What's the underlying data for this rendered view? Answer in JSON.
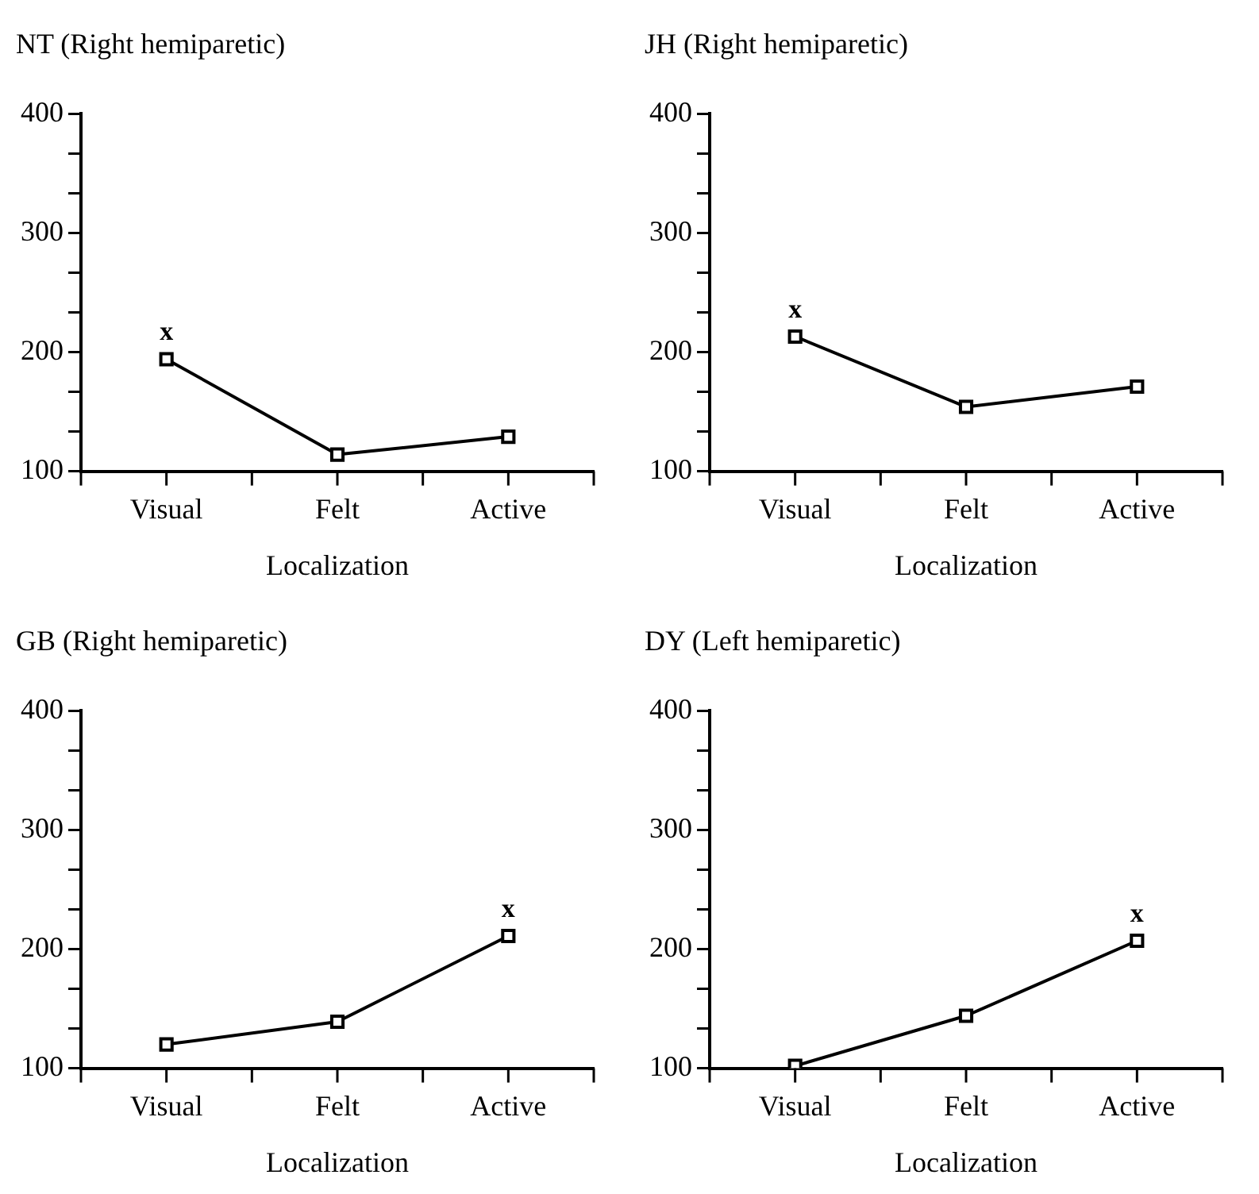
{
  "chart_data": [
    {
      "type": "line",
      "title": "NT (Right hemiparetic)",
      "xlabel": "Localization",
      "categories": [
        "Visual",
        "Felt",
        "Active"
      ],
      "series": [
        {
          "color": "#000000",
          "values": [
            194,
            114,
            129
          ]
        }
      ],
      "ylim": [
        100,
        400
      ],
      "yticks": [
        100,
        {
          "value": 133.3,
          "label": null
        },
        {
          "value": 166.7,
          "label": null
        },
        200,
        {
          "value": 233.3,
          "label": null
        },
        {
          "value": 266.7,
          "label": null
        },
        300,
        {
          "value": 333.3,
          "label": null
        },
        {
          "value": 366.7,
          "label": null
        },
        400
      ],
      "marker": "square",
      "grid": false,
      "legend": false,
      "annotations": [
        {
          "text": "x",
          "x": "Visual",
          "y": 194
        }
      ]
    },
    {
      "type": "line",
      "title": "JH (Right hemiparetic)",
      "xlabel": "Localization",
      "categories": [
        "Visual",
        "Felt",
        "Active"
      ],
      "series": [
        {
          "color": "#000000",
          "values": [
            213,
            154,
            171
          ]
        }
      ],
      "ylim": [
        100,
        400
      ],
      "yticks": [
        100,
        {
          "value": 133.3,
          "label": null
        },
        {
          "value": 166.7,
          "label": null
        },
        200,
        {
          "value": 233.3,
          "label": null
        },
        {
          "value": 266.7,
          "label": null
        },
        300,
        {
          "value": 333.3,
          "label": null
        },
        {
          "value": 366.7,
          "label": null
        },
        400
      ],
      "marker": "square",
      "grid": false,
      "legend": false,
      "annotations": [
        {
          "text": "x",
          "x": "Visual",
          "y": 213
        }
      ]
    },
    {
      "type": "line",
      "title": "GB (Right hemiparetic)",
      "xlabel": "Localization",
      "categories": [
        "Visual",
        "Felt",
        "Active"
      ],
      "series": [
        {
          "color": "#000000",
          "values": [
            120,
            139,
            211
          ]
        }
      ],
      "ylim": [
        100,
        400
      ],
      "yticks": [
        100,
        {
          "value": 133.3,
          "label": null
        },
        {
          "value": 166.7,
          "label": null
        },
        200,
        {
          "value": 233.3,
          "label": null
        },
        {
          "value": 266.7,
          "label": null
        },
        300,
        {
          "value": 333.3,
          "label": null
        },
        {
          "value": 366.7,
          "label": null
        },
        400
      ],
      "marker": "square",
      "grid": false,
      "legend": false,
      "annotations": [
        {
          "text": "x",
          "x": "Active",
          "y": 211
        }
      ]
    },
    {
      "type": "line",
      "title": "DY (Left hemiparetic)",
      "xlabel": "Localization",
      "categories": [
        "Visual",
        "Felt",
        "Active"
      ],
      "series": [
        {
          "color": "#000000",
          "values": [
            102,
            144,
            207
          ]
        }
      ],
      "ylim": [
        100,
        400
      ],
      "yticks": [
        100,
        {
          "value": 133.3,
          "label": null
        },
        {
          "value": 166.7,
          "label": null
        },
        200,
        {
          "value": 233.3,
          "label": null
        },
        {
          "value": 266.7,
          "label": null
        },
        300,
        {
          "value": 333.3,
          "label": null
        },
        {
          "value": 366.7,
          "label": null
        },
        400
      ],
      "marker": "square",
      "grid": false,
      "legend": false,
      "annotations": [
        {
          "text": "x",
          "x": "Active",
          "y": 207
        }
      ]
    }
  ]
}
